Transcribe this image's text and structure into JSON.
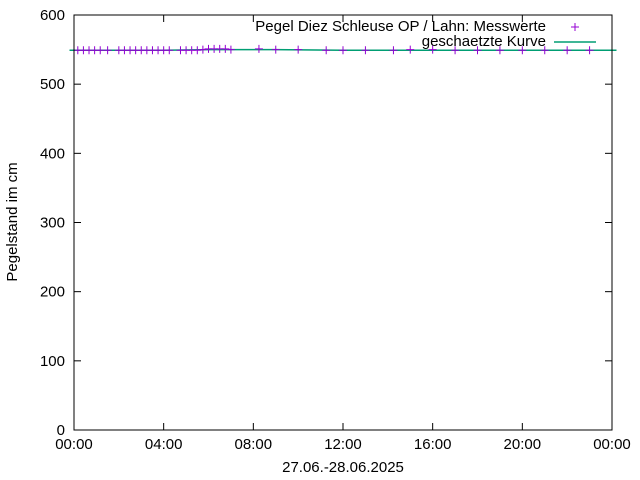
{
  "chart_data": {
    "type": "scatter",
    "xlabel": "27.06.-28.06.2025",
    "ylabel": "Pegelstand im cm",
    "xlim": [
      0,
      24
    ],
    "ylim": [
      0,
      600
    ],
    "x_ticks": [
      "00:00",
      "04:00",
      "08:00",
      "12:00",
      "16:00",
      "20:00",
      "00:00"
    ],
    "y_ticks": [
      "0",
      "100",
      "200",
      "300",
      "400",
      "500",
      "600"
    ],
    "grid": false,
    "legend_position": "top-right",
    "series": [
      {
        "name": "Pegel Diez Schleuse OP / Lahn: Messwerte",
        "kind": "points",
        "marker": "plus",
        "color": "#9400d3",
        "x": [
          0.17,
          0.42,
          0.67,
          0.92,
          1.17,
          1.5,
          2.0,
          2.25,
          2.5,
          2.75,
          3.0,
          3.25,
          3.5,
          3.75,
          4.0,
          4.25,
          4.75,
          5.0,
          5.25,
          5.5,
          5.75,
          6.0,
          6.25,
          6.5,
          6.75,
          7.0,
          8.25,
          9.0,
          10.0,
          11.25,
          12.0,
          13.0,
          14.25,
          15.0,
          16.0,
          17.0,
          18.0,
          19.0,
          20.0,
          21.0,
          22.0,
          23.0
        ],
        "y": [
          549,
          549,
          549,
          549,
          549,
          549,
          549,
          549,
          549,
          549,
          549,
          549,
          549,
          549,
          549,
          549,
          549,
          549,
          549,
          549,
          550,
          551,
          551,
          551,
          551,
          550,
          551,
          550,
          550,
          549,
          549,
          549,
          549,
          550,
          550,
          549,
          549,
          549,
          549,
          549,
          549,
          549
        ]
      },
      {
        "name": "geschaetzte Kurve",
        "kind": "line",
        "color": "#009e73",
        "x": [
          -0.2,
          4.0,
          6.0,
          7.5,
          9.0,
          12.0,
          16.0,
          20.0,
          24.2
        ],
        "y": [
          549,
          549,
          550,
          550,
          550,
          549,
          549,
          549,
          549
        ]
      }
    ]
  }
}
